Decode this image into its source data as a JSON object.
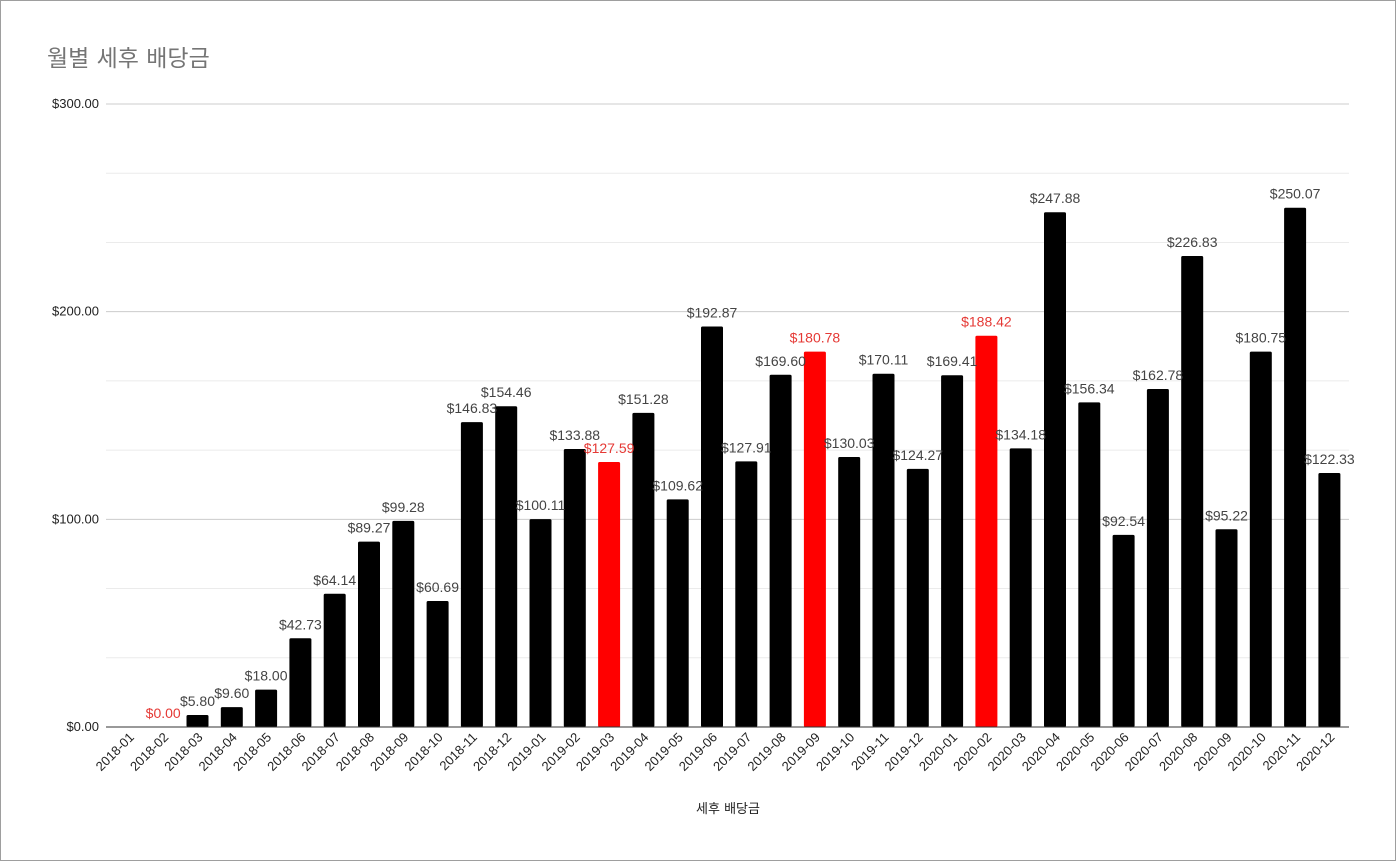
{
  "chart_data": {
    "type": "bar",
    "title": "월별 세후 배당금",
    "xlabel": "세후 배당금",
    "ylabel": "",
    "ylim": [
      0,
      300
    ],
    "yticks": [
      "$0.00",
      "$100.00",
      "$200.00",
      "$300.00"
    ],
    "yticks_values": [
      0,
      100,
      200,
      300
    ],
    "minor_grid_values": [
      33.33,
      66.67,
      133.33,
      166.67,
      233.33,
      266.67
    ],
    "grid": true,
    "legend": "none",
    "default_bar_color": "#000000",
    "highlight_bar_color": "#ff0000",
    "label_color": "#444444",
    "highlight_label_color": "#e53935",
    "categories": [
      "2018-01",
      "2018-02",
      "2018-03",
      "2018-04",
      "2018-05",
      "2018-06",
      "2018-07",
      "2018-08",
      "2018-09",
      "2018-10",
      "2018-11",
      "2018-12",
      "2019-01",
      "2019-02",
      "2019-03",
      "2019-04",
      "2019-05",
      "2019-06",
      "2019-07",
      "2019-08",
      "2019-09",
      "2019-10",
      "2019-11",
      "2019-12",
      "2020-01",
      "2020-02",
      "2020-03",
      "2020-04",
      "2020-05",
      "2020-06",
      "2020-07",
      "2020-08",
      "2020-09",
      "2020-10",
      "2020-11",
      "2020-12"
    ],
    "values": [
      null,
      0.0,
      5.8,
      9.6,
      18.0,
      42.73,
      64.14,
      89.27,
      99.28,
      60.69,
      146.83,
      154.46,
      100.11,
      133.88,
      127.59,
      151.28,
      109.62,
      192.87,
      127.91,
      169.6,
      180.78,
      130.03,
      170.11,
      124.27,
      169.41,
      188.42,
      134.18,
      247.88,
      156.34,
      92.54,
      162.78,
      226.83,
      95.22,
      180.75,
      250.07,
      122.33
    ],
    "data_labels": [
      "",
      "$0.00",
      "$5.80",
      "$9.60",
      "$18.00",
      "$42.73",
      "$64.14",
      "$89.27",
      "$99.28",
      "$60.69",
      "$146.83",
      "$154.46",
      "$100.11",
      "$133.88",
      "$127.59",
      "$151.28",
      "$109.62",
      "$192.87",
      "$127.91",
      "$169.60",
      "$180.78",
      "$130.03",
      "$170.11",
      "$124.27",
      "$169.41",
      "$188.42",
      "$134.18",
      "$247.88",
      "$156.34",
      "$92.54",
      "$162.78",
      "$226.83",
      "$95.22",
      "$180.75",
      "$250.07",
      "$122.33"
    ],
    "highlighted": [
      false,
      true,
      false,
      false,
      false,
      false,
      false,
      false,
      false,
      false,
      false,
      false,
      false,
      false,
      true,
      false,
      false,
      false,
      false,
      false,
      true,
      false,
      false,
      false,
      false,
      true,
      false,
      false,
      false,
      false,
      false,
      false,
      false,
      false,
      false,
      false
    ]
  }
}
